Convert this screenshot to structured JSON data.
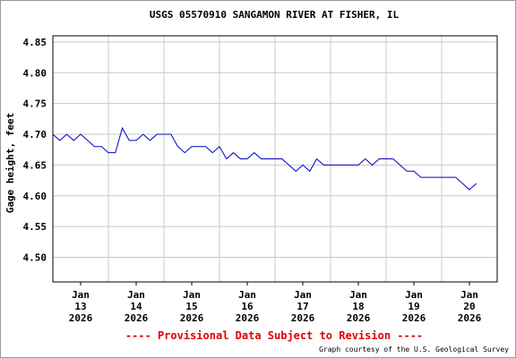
{
  "chart_data": {
    "type": "line",
    "title": "USGS 05570910 SANGAMON RIVER AT FISHER, IL",
    "y_label": "Gage height, feet",
    "footer_note": "---- Provisional Data Subject to Revision ----",
    "credit": "Graph courtesy of the U.S. Geological Survey",
    "xlim": [
      13,
      21
    ],
    "ylim": [
      4.46,
      4.86
    ],
    "yticks": [
      {
        "value": 4.5,
        "label": "4.50"
      },
      4.55,
      {
        "value": 4.6,
        "label": "4.60"
      },
      4.65,
      {
        "value": 4.7,
        "label": "4.70"
      },
      4.75,
      {
        "value": 4.8,
        "label": "4.80"
      },
      4.85
    ],
    "xticks": [
      {
        "value": 13.5,
        "label": [
          "Jan",
          "13",
          "2026"
        ]
      },
      {
        "value": 14.5,
        "label": [
          "Jan",
          "14",
          "2026"
        ]
      },
      {
        "value": 15.5,
        "label": [
          "Jan",
          "15",
          "2026"
        ]
      },
      {
        "value": 16.5,
        "label": [
          "Jan",
          "16",
          "2026"
        ]
      },
      {
        "value": 17.5,
        "label": [
          "Jan",
          "17",
          "2026"
        ]
      },
      {
        "value": 18.5,
        "label": [
          "Jan",
          "18",
          "2026"
        ]
      },
      {
        "value": 19.5,
        "label": [
          "Jan",
          "19",
          "2026"
        ]
      },
      {
        "value": 20.5,
        "label": [
          "Jan",
          "20",
          "2026"
        ]
      }
    ],
    "x_grid": [
      14,
      15,
      16,
      17,
      18,
      19,
      20
    ],
    "grid": true,
    "series": [
      {
        "name": "Gage height",
        "color": "#0000cc",
        "x": [
          13,
          13.125,
          13.25,
          13.375,
          13.5,
          13.625,
          13.75,
          13.875,
          14,
          14.125,
          14.25,
          14.375,
          14.5,
          14.625,
          14.75,
          14.875,
          15,
          15.125,
          15.25,
          15.375,
          15.5,
          15.625,
          15.75,
          15.875,
          16,
          16.125,
          16.25,
          16.375,
          16.5,
          16.625,
          16.75,
          16.875,
          17,
          17.125,
          17.25,
          17.375,
          17.5,
          17.625,
          17.75,
          17.875,
          18,
          18.125,
          18.25,
          18.375,
          18.5,
          18.625,
          18.75,
          18.875,
          19,
          19.125,
          19.25,
          19.375,
          19.5,
          19.625,
          19.75,
          19.875,
          20,
          20.125,
          20.25,
          20.375,
          20.5,
          20.625
        ],
        "values": [
          4.7,
          4.69,
          4.7,
          4.69,
          4.7,
          4.69,
          4.68,
          4.68,
          4.67,
          4.67,
          4.71,
          4.69,
          4.69,
          4.7,
          4.69,
          4.7,
          4.7,
          4.7,
          4.68,
          4.67,
          4.68,
          4.68,
          4.68,
          4.67,
          4.68,
          4.66,
          4.67,
          4.66,
          4.66,
          4.67,
          4.66,
          4.66,
          4.66,
          4.66,
          4.65,
          4.64,
          4.65,
          4.64,
          4.66,
          4.65,
          4.65,
          4.65,
          4.65,
          4.65,
          4.65,
          4.66,
          4.65,
          4.66,
          4.66,
          4.66,
          4.65,
          4.64,
          4.64,
          4.63,
          4.63,
          4.63,
          4.63,
          4.63,
          4.63,
          4.62,
          4.61,
          4.62
        ]
      }
    ]
  }
}
